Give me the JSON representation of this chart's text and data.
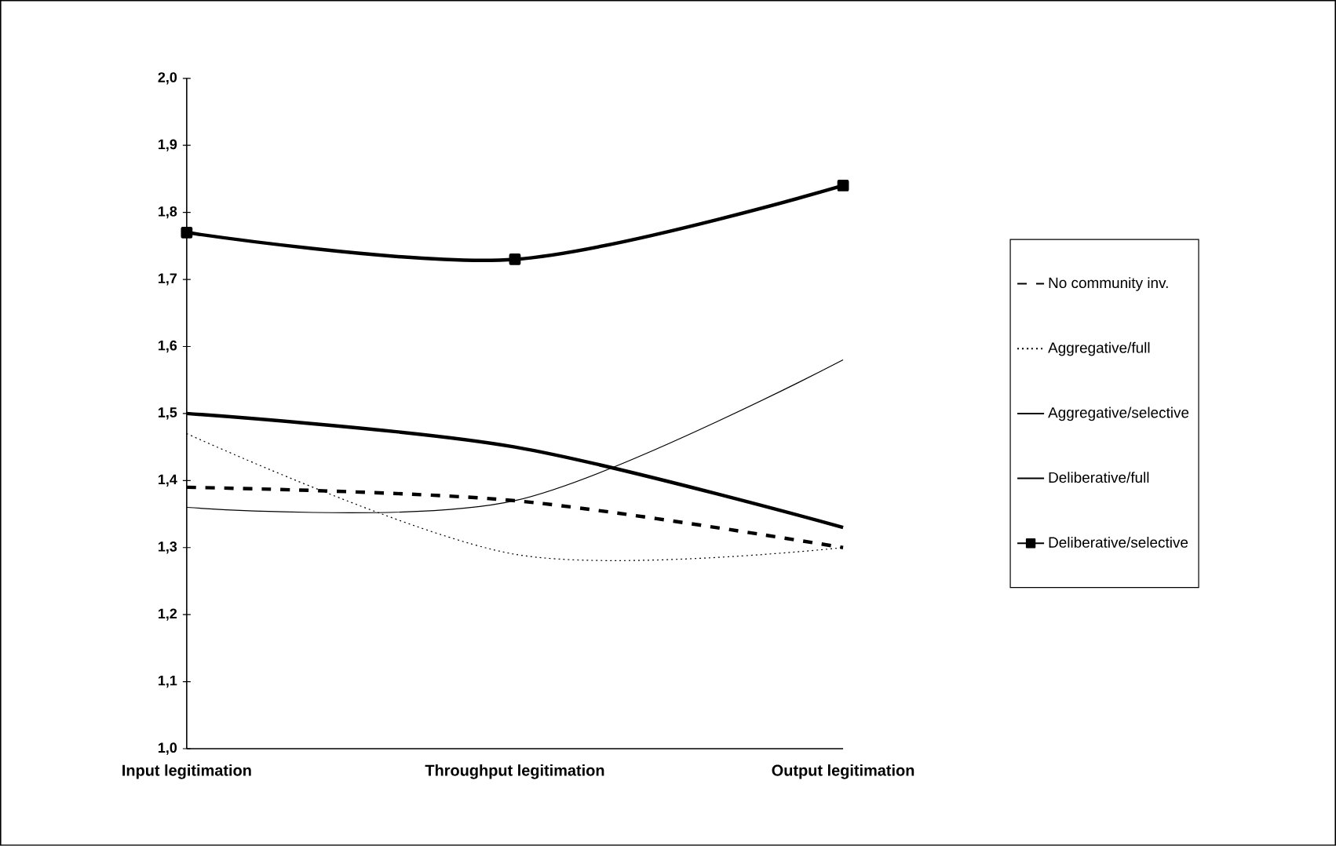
{
  "chart_data": {
    "type": "line",
    "categories": [
      "Input legitimation",
      "Throughput legitimation",
      "Output legitimation"
    ],
    "ylim": [
      1.0,
      2.0
    ],
    "yticks": [
      {
        "value": 1.0,
        "label": "1,0"
      },
      {
        "value": 1.1,
        "label": "1,1"
      },
      {
        "value": 1.2,
        "label": "1,2"
      },
      {
        "value": 1.3,
        "label": "1,3"
      },
      {
        "value": 1.4,
        "label": "1,4"
      },
      {
        "value": 1.5,
        "label": "1,5"
      },
      {
        "value": 1.6,
        "label": "1,6"
      },
      {
        "value": 1.7,
        "label": "1,7"
      },
      {
        "value": 1.8,
        "label": "1,8"
      },
      {
        "value": 1.9,
        "label": "1,9"
      },
      {
        "value": 2.0,
        "label": "2,0"
      }
    ],
    "legend": "right",
    "grid": false,
    "series": [
      {
        "name": "No community inv.",
        "color": "#000000",
        "values": [
          1.39,
          1.37,
          1.3
        ],
        "line_style": "dashed"
      },
      {
        "name": "Aggregative/full",
        "color": "#000000",
        "values": [
          1.47,
          1.29,
          1.3
        ],
        "line_style": "dotted"
      },
      {
        "name": "Aggregative/selective",
        "color": "#000000",
        "values": [
          1.36,
          1.37,
          1.58
        ],
        "line_style": "solid"
      },
      {
        "name": "Deliberative/full",
        "color": "#000000",
        "values": [
          1.5,
          1.45,
          1.33
        ],
        "line_style": "solid"
      },
      {
        "name": "Deliberative/selective",
        "color": "#000000",
        "values": [
          1.77,
          1.73,
          1.84
        ],
        "line_style": "solid",
        "marker": "square"
      }
    ]
  }
}
